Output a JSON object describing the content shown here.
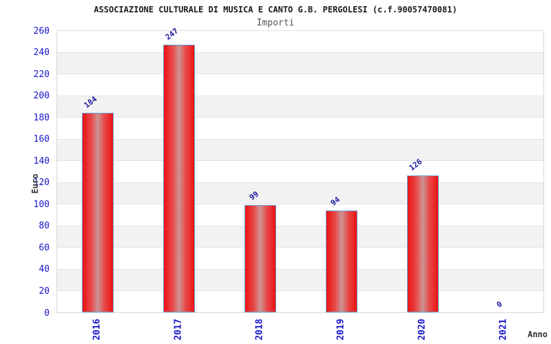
{
  "header": {
    "title": "ASSOCIAZIONE CULTURALE DI MUSICA E CANTO G.B. PERGOLESI (c.f.90057470081)",
    "subtitle": "Importi"
  },
  "chart_data": {
    "type": "bar",
    "categories": [
      "2016",
      "2017",
      "2018",
      "2019",
      "2020",
      "2021"
    ],
    "values": [
      184,
      247,
      99,
      94,
      126,
      0
    ],
    "title": "ASSOCIAZIONE CULTURALE DI MUSICA E CANTO G.B. PERGOLESI (c.f.90057470081)",
    "subtitle": "Importi",
    "xlabel": "Anno",
    "ylabel": "Euro",
    "ylim": [
      0,
      260
    ],
    "ytick_step": 20,
    "ytick_labels": [
      "0",
      "20",
      "40",
      "60",
      "80",
      "100",
      "120",
      "140",
      "160",
      "180",
      "200",
      "220",
      "240",
      "260"
    ],
    "grid": "horizontal-bands-alternating",
    "legend_position": "none",
    "value_labels_rotated": true,
    "colors": {
      "bar_fill_edge": "#ec1212",
      "bar_fill_mid": "#e84848",
      "bar_fill_center": "#cc9494",
      "bar_border": "#64a0d8",
      "tick_label": "#1414cc",
      "value_label": "#1a1aa0",
      "band_gray": "#f2f2f2",
      "band_white": "#ffffff",
      "grid_line": "#e2e2e2",
      "plot_border": "#d6d6d6",
      "title_color": "#1a1a1a",
      "subtitle_color": "#555555",
      "axis_title_color": "#333333"
    }
  }
}
